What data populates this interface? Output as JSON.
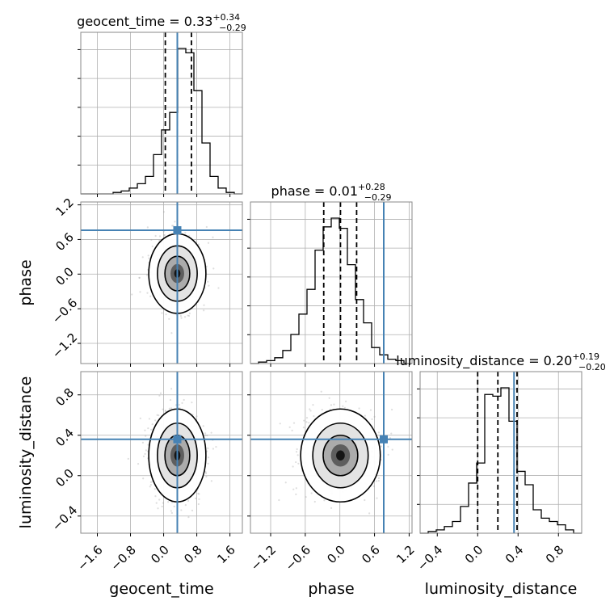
{
  "chart_data": {
    "type": "corner",
    "parameters": [
      "geocent_time",
      "phase",
      "luminosity_distance"
    ],
    "truths": {
      "geocent_time": 0.33,
      "phase": 0.76,
      "luminosity_distance": 0.36
    },
    "marginals": {
      "geocent_time": {
        "title_name": "geocent_time",
        "median": "0.33",
        "plus": "+0.34",
        "minus": "−0.29",
        "quantiles": [
          0.04,
          0.33,
          0.67
        ],
        "range": [
          -2.0,
          1.9
        ],
        "hist_values": [
          0,
          0,
          0,
          0,
          1,
          2,
          4,
          7,
          12,
          27,
          44,
          56,
          100,
          97,
          71,
          35,
          12,
          4,
          1,
          0
        ],
        "tick_values": [
          -1.6,
          -0.8,
          0.0,
          0.8,
          1.6
        ],
        "tick_labels": [
          "−1.6",
          "−0.8",
          "0.0",
          "0.8",
          "1.6"
        ]
      },
      "phase": {
        "title_name": "phase",
        "median": "0.01",
        "plus": "+0.28",
        "minus": "−0.29",
        "quantiles": [
          -0.28,
          0.01,
          0.29
        ],
        "range": [
          -1.55,
          1.25
        ],
        "hist_values": [
          0,
          1,
          2,
          4,
          9,
          20,
          34,
          51,
          78,
          94,
          100,
          93,
          68,
          44,
          28,
          11,
          6,
          3,
          2,
          0
        ],
        "tick_values": [
          -1.2,
          -0.6,
          0.0,
          0.6,
          1.2
        ],
        "tick_labels": [
          "−1.2",
          "−0.6",
          "0.0",
          "0.6",
          "1.2"
        ]
      },
      "luminosity_distance": {
        "title_name": "luminosity_distance",
        "median": "0.20",
        "plus": "+0.19",
        "minus": "−0.20",
        "quantiles": [
          0.0,
          0.2,
          0.39
        ],
        "range": [
          -0.57,
          1.03
        ],
        "hist_values": [
          0,
          1,
          2,
          4,
          7,
          16,
          30,
          42,
          83,
          82,
          87,
          67,
          37,
          29,
          14,
          9,
          7,
          5,
          2,
          0
        ],
        "tick_values": [
          -0.4,
          0.0,
          0.4,
          0.8
        ],
        "tick_labels": [
          "−0.4",
          "0.0",
          "0.4",
          "0.8"
        ]
      }
    },
    "pairs": [
      {
        "x": "geocent_time",
        "y": "phase",
        "center": [
          0.33,
          0.01
        ],
        "sigma": [
          0.3,
          0.3
        ]
      },
      {
        "x": "geocent_time",
        "y": "luminosity_distance",
        "center": [
          0.33,
          0.2
        ],
        "sigma": [
          0.3,
          0.2
        ]
      },
      {
        "x": "phase",
        "y": "luminosity_distance",
        "center": [
          0.01,
          0.2
        ],
        "sigma": [
          0.3,
          0.2
        ]
      }
    ],
    "axis_labels": {
      "x": [
        "geocent_time",
        "phase",
        "luminosity_distance"
      ],
      "y": [
        "phase",
        "luminosity_distance"
      ]
    },
    "colors": {
      "truth": "#4682b4",
      "hist": "#000000",
      "quantile": "#000000"
    },
    "grid": true
  }
}
